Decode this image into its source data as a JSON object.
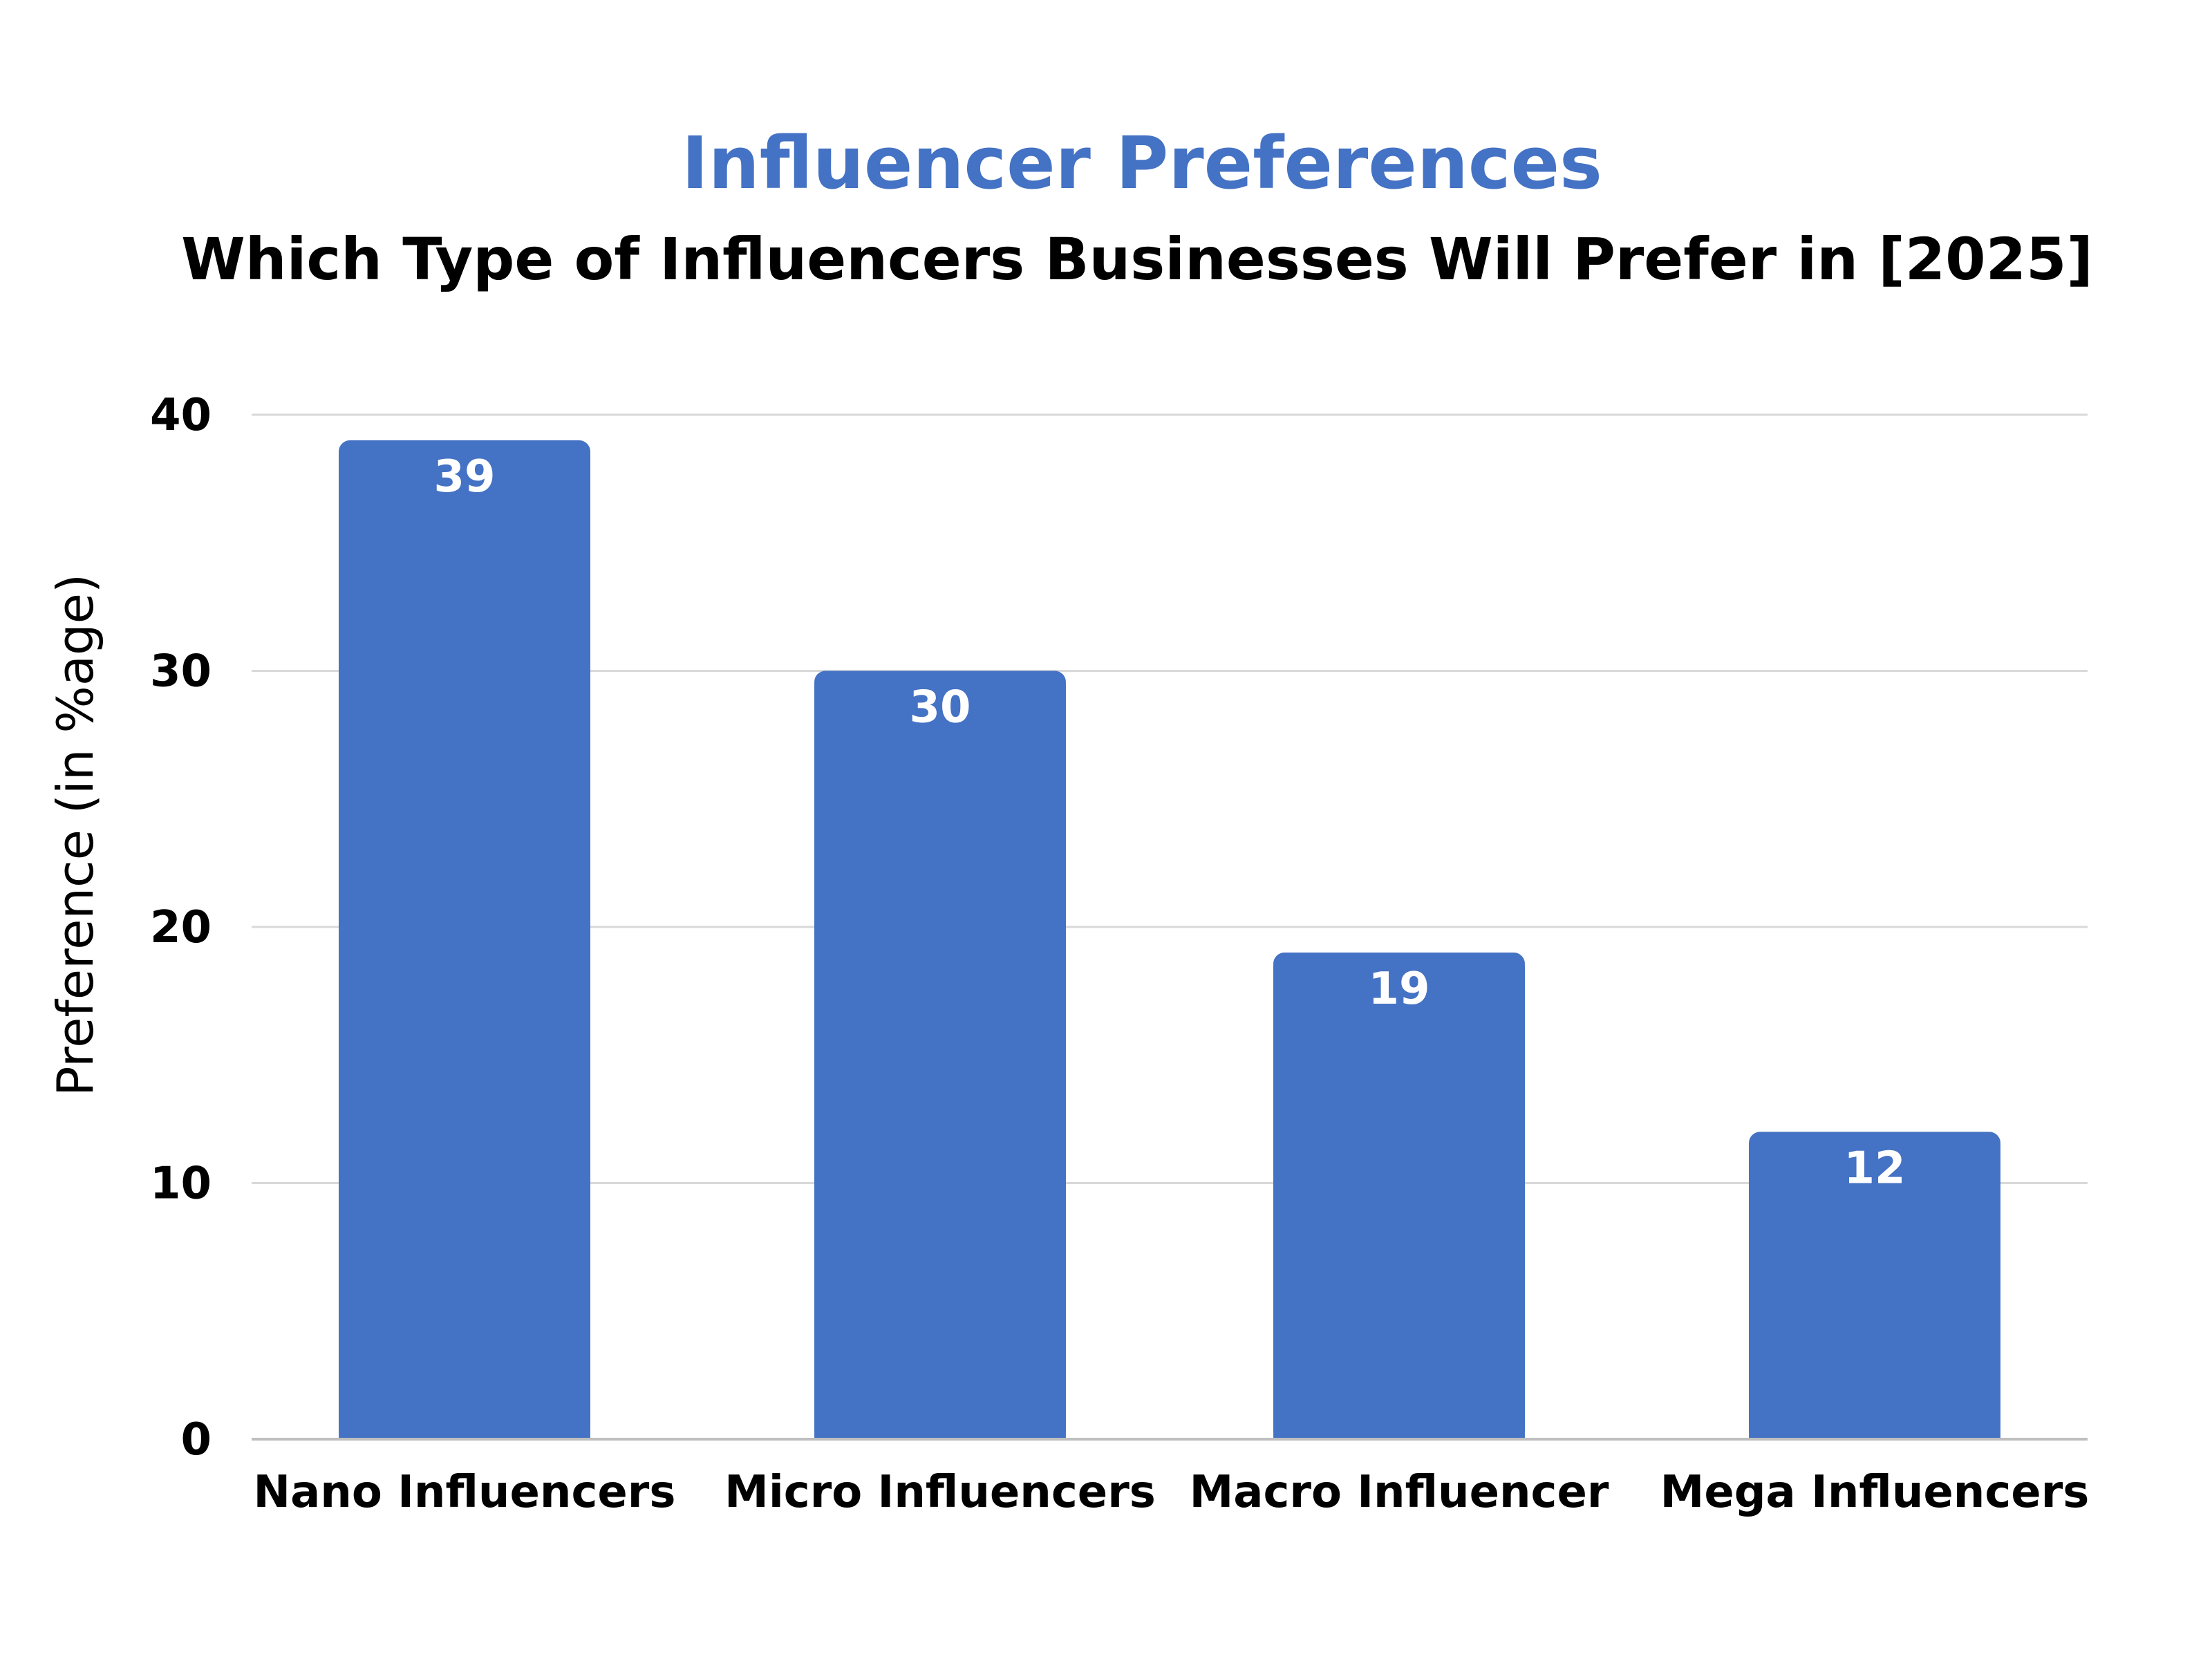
{
  "colors": {
    "bar": "#4472C4",
    "title": "#4472C4",
    "subtitle": "#000000",
    "grid": "#D9D9D9",
    "axis": "#BFBFBF",
    "data_label": "#FFFFFF"
  },
  "chart_data": {
    "type": "bar",
    "title": "Influencer Preferences",
    "subtitle": "Which Type of Influencers Businesses Will Prefer in [2025]",
    "xlabel": "",
    "ylabel": "Preference  (in %age)",
    "categories": [
      "Nano Influencers",
      "Micro Influencers",
      "Macro Influencer",
      "Mega Influencers"
    ],
    "values": [
      39,
      30,
      19,
      12
    ],
    "data_labels": [
      "39",
      "30",
      "19",
      "12"
    ],
    "ylim": [
      0,
      40
    ],
    "yticks": [
      0,
      10,
      20,
      30,
      40
    ],
    "ytick_labels": [
      "0",
      "10",
      "20",
      "30",
      "40"
    ],
    "grid": true,
    "legend": "none"
  }
}
